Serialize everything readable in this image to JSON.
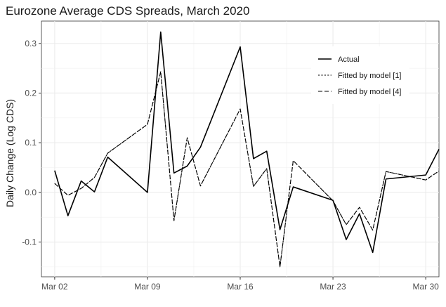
{
  "chart_data": {
    "type": "line",
    "title": "Eurozone Average CDS Spreads, March 2020",
    "xlabel": "",
    "ylabel": "Daily Change (Log CDS)",
    "x_ticks": [
      "Mar 02",
      "Mar 09",
      "Mar 16",
      "Mar 23",
      "Mar 30"
    ],
    "y_ticks": [
      "-0.1",
      "0.0",
      "0.1",
      "0.2",
      "0.3"
    ],
    "xlim": [
      "2020-03-01",
      "2020-03-31"
    ],
    "ylim": [
      -0.17,
      0.345
    ],
    "grid": true,
    "legend_position": "top-right",
    "series": [
      {
        "name": "Actual",
        "line_style": "solid",
        "x": [
          "2020-03-02",
          "2020-03-03",
          "2020-03-04",
          "2020-03-05",
          "2020-03-06",
          "2020-03-09",
          "2020-03-10",
          "2020-03-11",
          "2020-03-12",
          "2020-03-13",
          "2020-03-16",
          "2020-03-17",
          "2020-03-18",
          "2020-03-19",
          "2020-03-20",
          "2020-03-23",
          "2020-03-24",
          "2020-03-25",
          "2020-03-26",
          "2020-03-27",
          "2020-03-30",
          "2020-03-31"
        ],
        "values": [
          0.044,
          -0.047,
          0.023,
          0.001,
          0.071,
          0.0,
          0.323,
          0.039,
          0.053,
          0.091,
          0.293,
          0.068,
          0.083,
          -0.075,
          0.011,
          -0.016,
          -0.095,
          -0.043,
          -0.121,
          0.027,
          0.035,
          0.087
        ]
      },
      {
        "name": "Fitted by model [1]",
        "line_style": "dotted",
        "x": [
          "2020-03-02",
          "2020-03-03",
          "2020-03-04",
          "2020-03-05",
          "2020-03-06",
          "2020-03-09",
          "2020-03-10",
          "2020-03-11",
          "2020-03-12",
          "2020-03-13",
          "2020-03-16",
          "2020-03-17",
          "2020-03-18",
          "2020-03-19",
          "2020-03-20",
          "2020-03-23",
          "2020-03-24",
          "2020-03-25",
          "2020-03-26",
          "2020-03-27",
          "2020-03-30",
          "2020-03-31"
        ],
        "values": [
          0.018,
          -0.006,
          0.008,
          0.03,
          0.079,
          0.137,
          0.243,
          -0.057,
          0.11,
          0.013,
          0.168,
          0.012,
          0.048,
          -0.15,
          0.064,
          -0.017,
          -0.065,
          -0.03,
          -0.076,
          0.042,
          0.025,
          0.043
        ]
      },
      {
        "name": "Fitted by model [4]",
        "line_style": "dashed",
        "x": [
          "2020-03-02",
          "2020-03-03",
          "2020-03-04",
          "2020-03-05",
          "2020-03-06",
          "2020-03-09",
          "2020-03-10",
          "2020-03-11",
          "2020-03-12",
          "2020-03-13",
          "2020-03-16",
          "2020-03-17",
          "2020-03-18",
          "2020-03-19",
          "2020-03-20",
          "2020-03-23",
          "2020-03-24",
          "2020-03-25",
          "2020-03-26",
          "2020-03-27",
          "2020-03-30",
          "2020-03-31"
        ],
        "values": [
          0.018,
          -0.006,
          0.008,
          0.03,
          0.079,
          0.137,
          0.243,
          -0.057,
          0.11,
          0.013,
          0.168,
          0.012,
          0.048,
          -0.15,
          0.064,
          -0.017,
          -0.065,
          -0.03,
          -0.076,
          0.042,
          0.025,
          0.043
        ]
      }
    ]
  }
}
